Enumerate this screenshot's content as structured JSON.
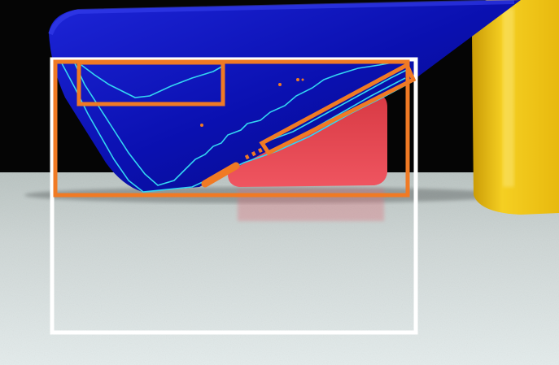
{
  "image": {
    "kind": "photo-with-detection-overlay",
    "colors": {
      "background_dark": "#050505",
      "table_surface": "#cfd7d6",
      "blue_object": "#0b11b8",
      "red_object": "#e2414b",
      "yellow_object": "#f2c515",
      "outer_box": "#ffffff",
      "detection_box": "#f07a24",
      "contour_line": "#33d6f2"
    },
    "overlays": {
      "outer_box_color": "#ffffff",
      "detection_box_color": "#f07a24",
      "contour_color": "#33d6f2"
    }
  }
}
